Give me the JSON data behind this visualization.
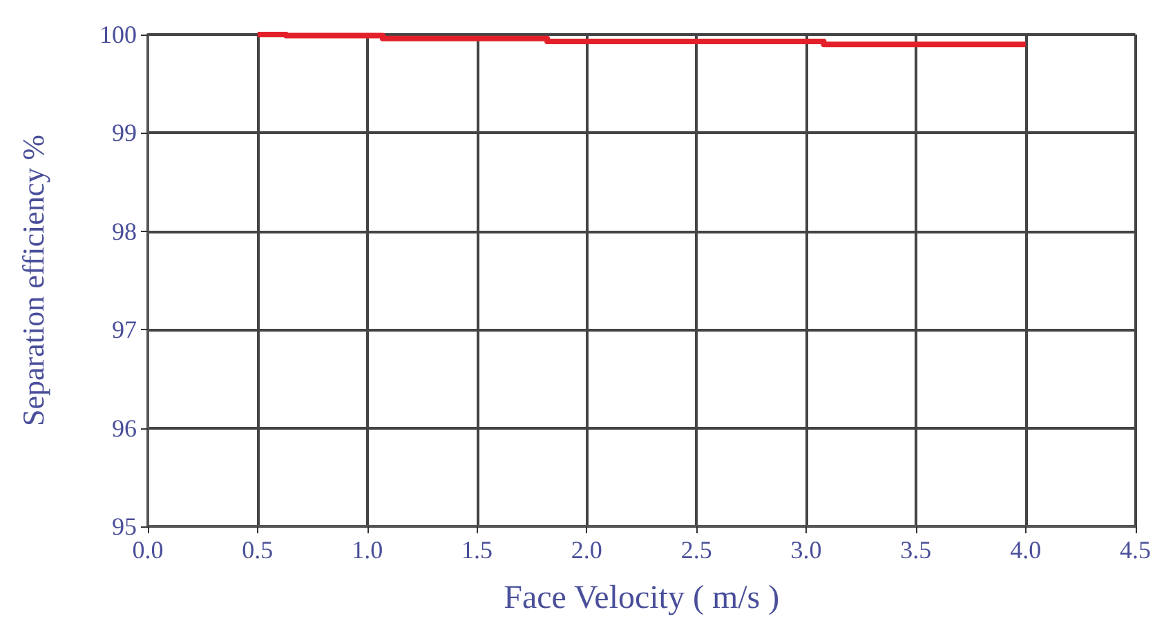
{
  "chart_data": {
    "type": "step",
    "xlabel": "Face Velocity ( m/s )",
    "ylabel": "Separation efficiency %",
    "x": [
      0.5,
      0.63,
      1.07,
      1.82,
      3.08,
      4.0
    ],
    "series": [
      {
        "color": "#e3202a",
        "values": [
          100,
          99.99,
          99.96,
          99.93,
          99.9,
          99.9
        ]
      }
    ],
    "xlim": [
      0,
      4.5
    ],
    "xticks": [
      {
        "value": 0,
        "label": "0.0"
      },
      0.5,
      {
        "value": 1,
        "label": "1.0"
      },
      1.5,
      {
        "value": 2,
        "label": "2.0"
      },
      2.5,
      {
        "value": 3,
        "label": "3.0"
      },
      3.5,
      {
        "value": 4,
        "label": "4.0"
      },
      4.5
    ],
    "ylim": [
      95,
      100
    ],
    "yticks": [
      95,
      96,
      97,
      98,
      99,
      100
    ],
    "grid": true,
    "marker": "none",
    "line_style": "solid"
  }
}
